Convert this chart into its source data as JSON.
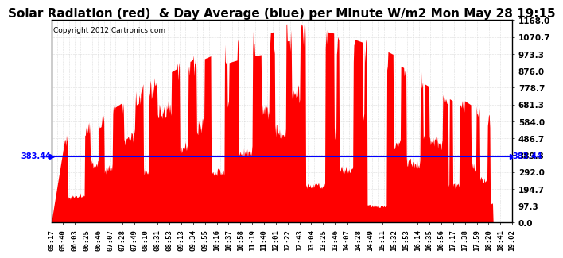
{
  "title": "Solar Radiation (red)  & Day Average (blue) per Minute W/m2 Mon May 28 19:15",
  "copyright": "Copyright 2012 Cartronics.com",
  "y_max": 1168.0,
  "y_min": 0.0,
  "y_ticks": [
    0.0,
    97.3,
    194.7,
    292.0,
    389.3,
    486.7,
    584.0,
    681.3,
    778.7,
    876.0,
    973.3,
    1070.7,
    1168.0
  ],
  "day_average": 383.44,
  "avg_label": "383.44",
  "fill_color": "#ff0000",
  "avg_line_color": "#0000ff",
  "background_color": "#ffffff",
  "grid_color": "#c0c0c0",
  "title_fontsize": 11,
  "x_labels": [
    "05:17",
    "05:40",
    "06:03",
    "06:25",
    "06:46",
    "07:07",
    "07:28",
    "07:49",
    "08:10",
    "08:31",
    "08:53",
    "09:13",
    "09:34",
    "09:55",
    "10:16",
    "10:37",
    "10:58",
    "11:19",
    "11:40",
    "12:01",
    "12:22",
    "12:43",
    "13:04",
    "13:25",
    "13:46",
    "14:07",
    "14:28",
    "14:49",
    "15:11",
    "15:32",
    "15:53",
    "16:14",
    "16:35",
    "16:56",
    "17:17",
    "17:38",
    "17:59",
    "18:20",
    "18:41",
    "19:02"
  ]
}
